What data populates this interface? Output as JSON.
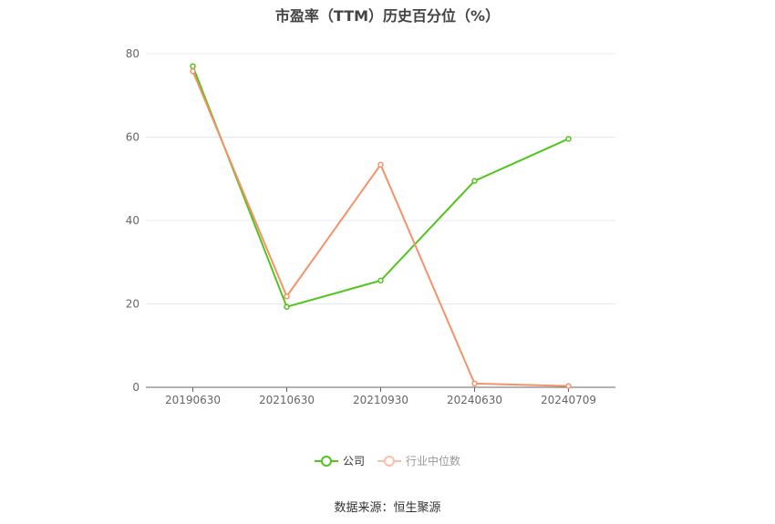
{
  "chart_data": {
    "type": "line",
    "title": "市盈率（TTM）历史百分位（%）",
    "categories": [
      "20190630",
      "20210630",
      "20210930",
      "20240630",
      "20240709"
    ],
    "ylim": [
      0,
      80
    ],
    "yticks": [
      0,
      20,
      40,
      60,
      80
    ],
    "grid": true,
    "legend_position": "bottom",
    "series": [
      {
        "name": "公司",
        "color": "#52c41a",
        "values": [
          77.0,
          19.3,
          25.6,
          49.5,
          59.6
        ]
      },
      {
        "name": "行业中位数",
        "color": "#f4926a",
        "values": [
          75.8,
          21.8,
          53.4,
          0.9,
          0.3
        ]
      }
    ]
  },
  "source": "数据来源：恒生聚源"
}
